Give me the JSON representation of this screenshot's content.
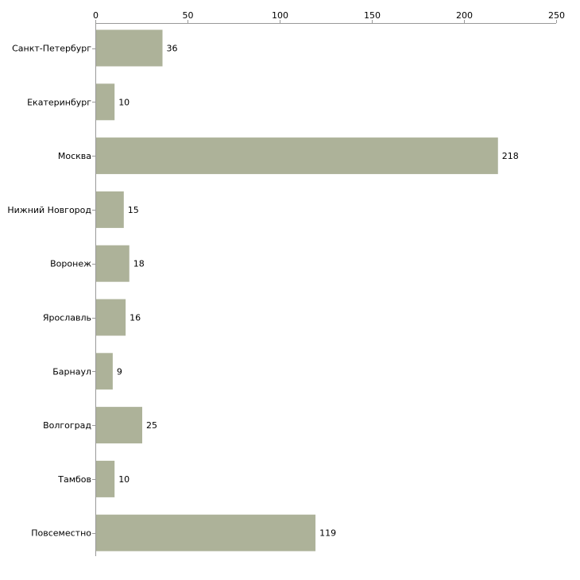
{
  "chart_data": {
    "type": "bar",
    "orientation": "horizontal",
    "title": "",
    "xlabel": "",
    "ylabel": "",
    "categories": [
      "Санкт-Петербург",
      "Екатеринбург",
      "Москва",
      "Нижний Новгород",
      "Воронеж",
      "Ярославль",
      "Барнаул",
      "Волгоград",
      "Тамбов",
      "Повсеместно"
    ],
    "values": [
      36,
      10,
      218,
      15,
      18,
      16,
      9,
      25,
      10,
      119
    ],
    "xlim": [
      0,
      250
    ],
    "xticks": [
      0,
      50,
      100,
      150,
      200,
      250
    ],
    "axis_position": "top",
    "grid": false,
    "bar_color": "#adb299",
    "show_value_labels": true
  }
}
